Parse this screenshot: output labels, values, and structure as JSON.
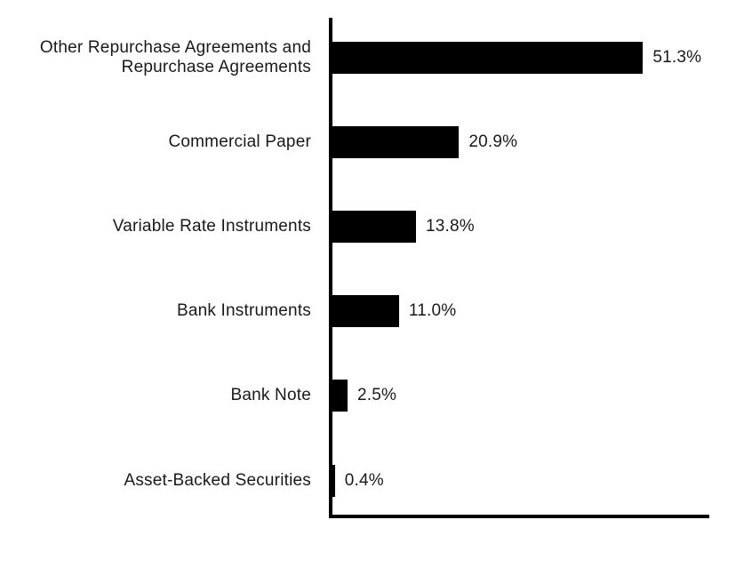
{
  "chart_data": {
    "type": "bar",
    "orientation": "horizontal",
    "title": "",
    "xlabel": "",
    "ylabel": "",
    "categories": [
      "Other Repurchase Agreements and Repurchase Agreements",
      "Commercial Paper",
      "Variable Rate Instruments",
      "Bank Instruments",
      "Bank Note",
      "Asset-Backed Securities"
    ],
    "values": [
      51.3,
      20.9,
      13.8,
      11.0,
      2.5,
      0.4
    ],
    "value_labels": [
      "51.3%",
      "20.9%",
      "13.8%",
      "11.0%",
      "2.5%",
      "0.4%"
    ],
    "xlim": [
      0,
      62
    ],
    "grid": false,
    "legend": false,
    "bar_color": "#000000",
    "axis_color": "#000000",
    "text_color": "#1a1a1a",
    "background_color": "#ffffff"
  }
}
